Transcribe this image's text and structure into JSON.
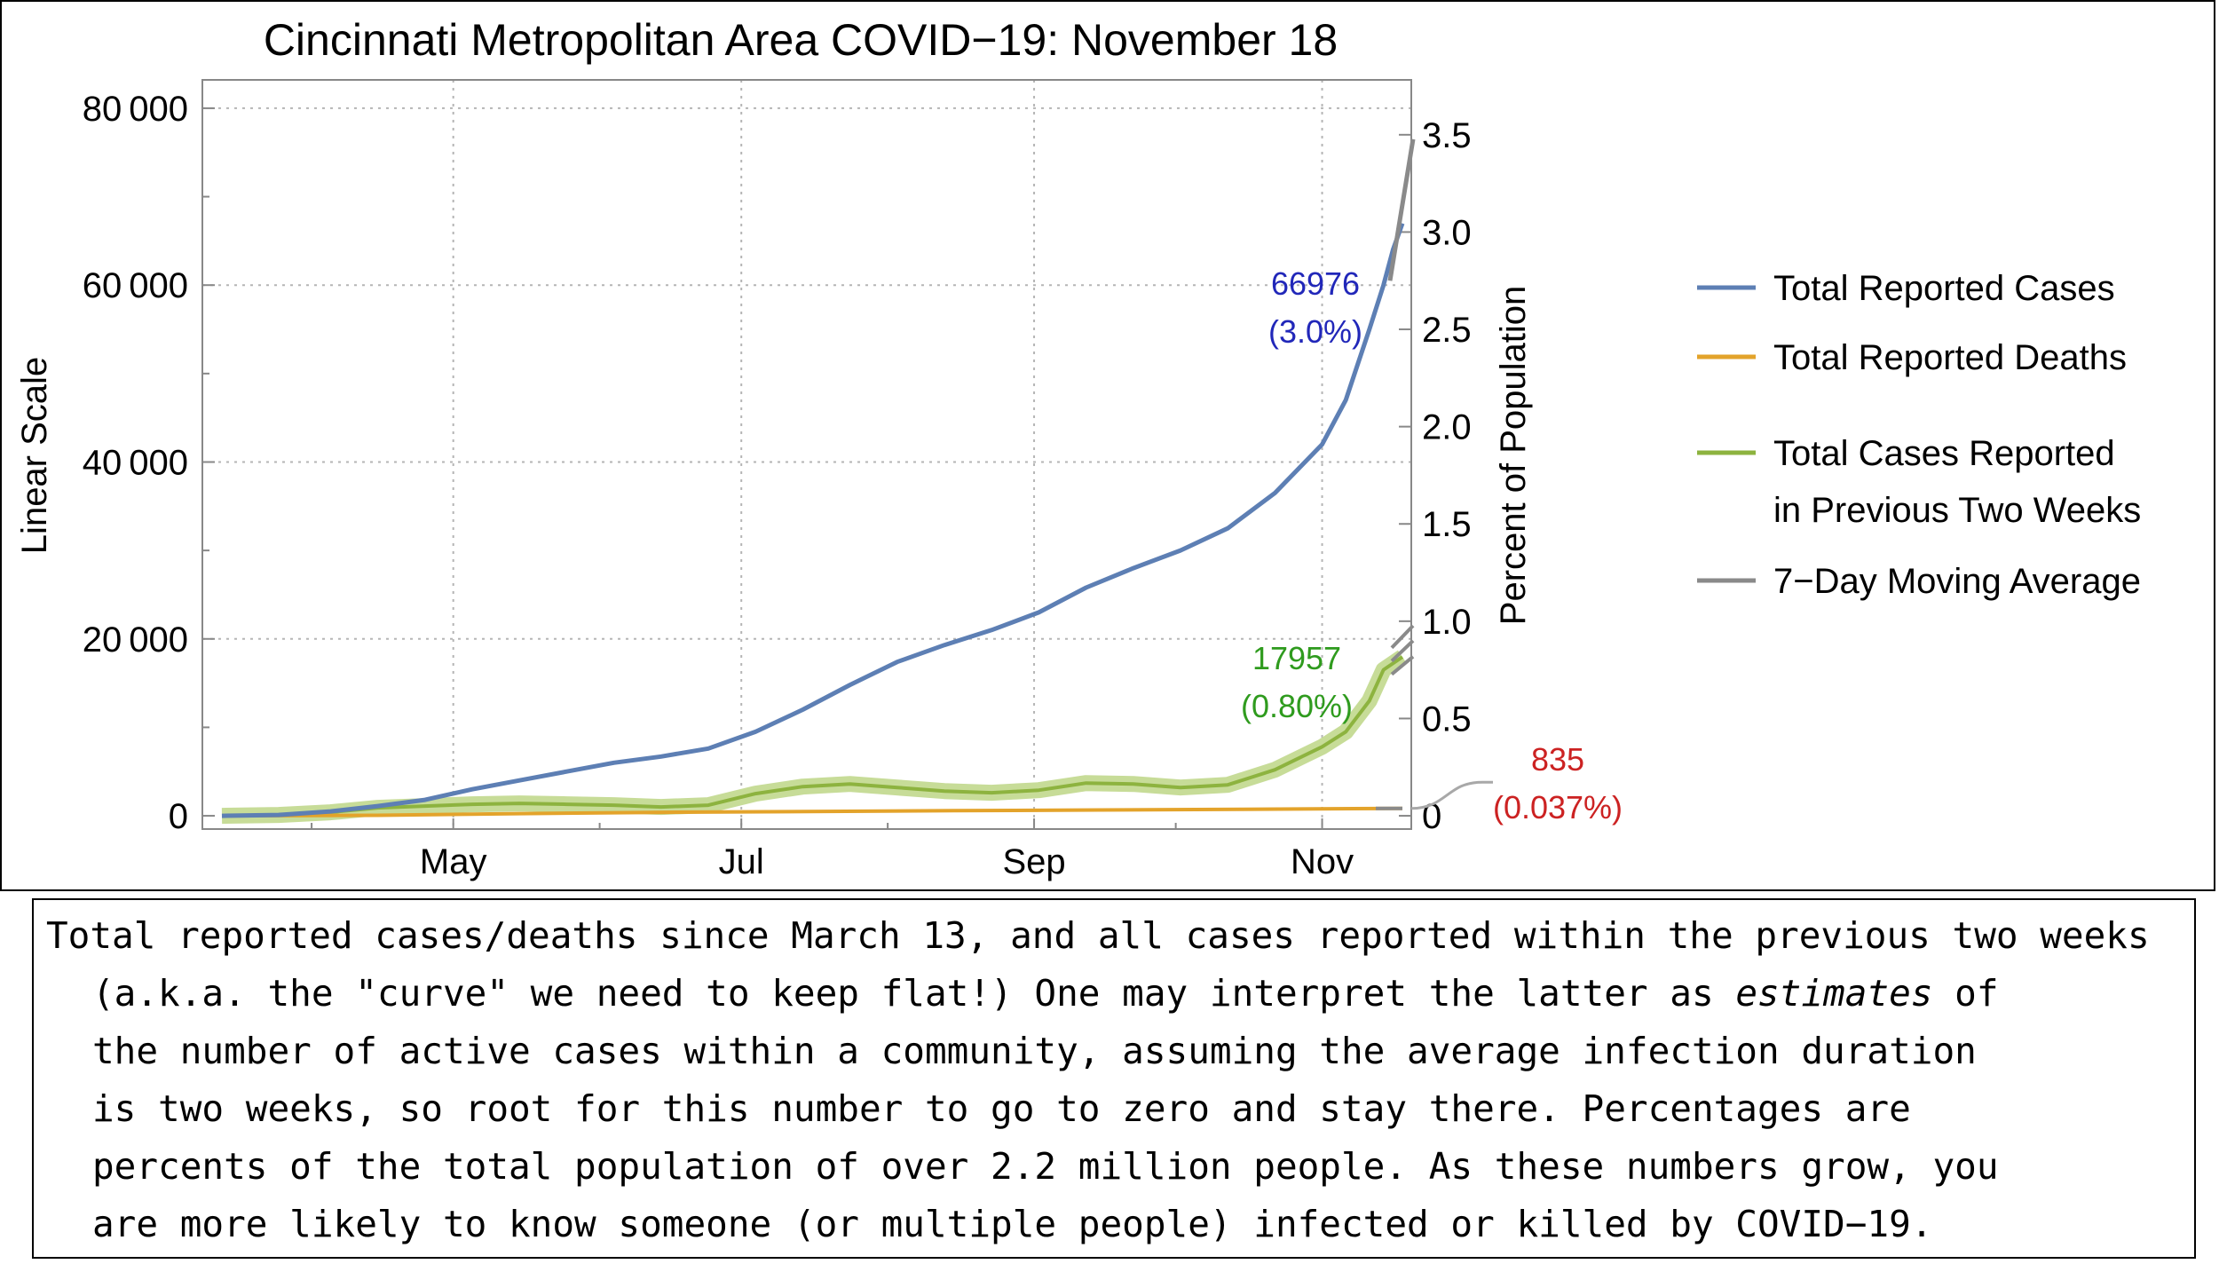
{
  "chart_data": {
    "type": "line",
    "title": "Cincinnati Metropolitan Area COVID−19: November 18",
    "ylabel": "Linear Scale",
    "y2label": "Percent of Population",
    "x_start": "2020-03-13",
    "x_end": "2020-11-18",
    "x_ticks": [
      {
        "date": "2020-05-01",
        "label": "May"
      },
      {
        "date": "2020-07-01",
        "label": "Jul"
      },
      {
        "date": "2020-09-01",
        "label": "Sep"
      },
      {
        "date": "2020-11-01",
        "label": "Nov"
      }
    ],
    "y_ticks": [
      {
        "value": 0,
        "label": "0"
      },
      {
        "value": 20000,
        "label": "20 000"
      },
      {
        "value": 40000,
        "label": "40 000"
      },
      {
        "value": 60000,
        "label": "60 000"
      },
      {
        "value": 80000,
        "label": "80 000"
      }
    ],
    "ylim": [
      -1500,
      82000
    ],
    "y2_ticks": [
      "0",
      "0.5",
      "1.0",
      "1.5",
      "2.0",
      "2.5",
      "3.0",
      "3.5"
    ],
    "grid": true,
    "legend_position": "right",
    "legend": [
      {
        "label": "Total Reported Cases",
        "color": "#5d7fb4"
      },
      {
        "label": "Total Reported Deaths",
        "color": "#e3a32b"
      },
      {
        "label": "Total Cases Reported\nin Previous Two Weeks",
        "color": "#8db33f"
      },
      {
        "label": "7−Day Moving Average",
        "color": "#8a8a8a"
      }
    ],
    "series": [
      {
        "name": "Total Reported Cases",
        "color": "#5d7fb4",
        "points": [
          [
            "2020-03-13",
            0
          ],
          [
            "2020-03-25",
            100
          ],
          [
            "2020-04-05",
            500
          ],
          [
            "2020-04-15",
            1100
          ],
          [
            "2020-04-25",
            1800
          ],
          [
            "2020-05-05",
            3000
          ],
          [
            "2020-05-15",
            4000
          ],
          [
            "2020-05-25",
            5000
          ],
          [
            "2020-06-04",
            6000
          ],
          [
            "2020-06-14",
            6700
          ],
          [
            "2020-06-24",
            7600
          ],
          [
            "2020-07-04",
            9500
          ],
          [
            "2020-07-14",
            12000
          ],
          [
            "2020-07-24",
            14800
          ],
          [
            "2020-08-03",
            17400
          ],
          [
            "2020-08-13",
            19300
          ],
          [
            "2020-08-23",
            21000
          ],
          [
            "2020-09-02",
            23000
          ],
          [
            "2020-09-12",
            25800
          ],
          [
            "2020-09-22",
            28000
          ],
          [
            "2020-10-02",
            30000
          ],
          [
            "2020-10-12",
            32500
          ],
          [
            "2020-10-22",
            36500
          ],
          [
            "2020-11-01",
            42000
          ],
          [
            "2020-11-06",
            47000
          ],
          [
            "2020-11-11",
            55000
          ],
          [
            "2020-11-14",
            60000
          ],
          [
            "2020-11-16",
            64000
          ],
          [
            "2020-11-18",
            66976
          ]
        ]
      },
      {
        "name": "Total Reported Deaths",
        "color": "#e3a32b",
        "points": [
          [
            "2020-03-13",
            0
          ],
          [
            "2020-04-15",
            60
          ],
          [
            "2020-05-15",
            250
          ],
          [
            "2020-06-15",
            400
          ],
          [
            "2020-07-15",
            480
          ],
          [
            "2020-08-15",
            580
          ],
          [
            "2020-09-15",
            660
          ],
          [
            "2020-10-15",
            740
          ],
          [
            "2020-11-18",
            835
          ]
        ]
      },
      {
        "name": "Total Cases Reported in Previous Two Weeks",
        "color": "#8db33f",
        "points": [
          [
            "2020-03-13",
            0
          ],
          [
            "2020-03-25",
            100
          ],
          [
            "2020-04-05",
            400
          ],
          [
            "2020-04-15",
            900
          ],
          [
            "2020-04-25",
            1100
          ],
          [
            "2020-05-05",
            1300
          ],
          [
            "2020-05-15",
            1400
          ],
          [
            "2020-05-25",
            1300
          ],
          [
            "2020-06-04",
            1200
          ],
          [
            "2020-06-14",
            1000
          ],
          [
            "2020-06-24",
            1200
          ],
          [
            "2020-07-04",
            2500
          ],
          [
            "2020-07-14",
            3300
          ],
          [
            "2020-07-24",
            3600
          ],
          [
            "2020-08-03",
            3200
          ],
          [
            "2020-08-13",
            2800
          ],
          [
            "2020-08-23",
            2600
          ],
          [
            "2020-09-02",
            2900
          ],
          [
            "2020-09-12",
            3700
          ],
          [
            "2020-09-22",
            3600
          ],
          [
            "2020-10-02",
            3200
          ],
          [
            "2020-10-12",
            3500
          ],
          [
            "2020-10-22",
            5200
          ],
          [
            "2020-11-01",
            7800
          ],
          [
            "2020-11-06",
            9500
          ],
          [
            "2020-11-11",
            13000
          ],
          [
            "2020-11-14",
            16500
          ],
          [
            "2020-11-18",
            17957
          ]
        ]
      }
    ],
    "annotations": [
      {
        "series": "Total Reported Cases",
        "value": "66976",
        "percent": "(3.0%)",
        "color": "#2127b9"
      },
      {
        "series": "Total Cases Reported in Previous Two Weeks",
        "value": "17957",
        "percent": "(0.80%)",
        "color": "#2f9b1e"
      },
      {
        "series": "Total Reported Deaths",
        "value": "835",
        "percent": "(0.037%)",
        "color": "#cc2222"
      }
    ]
  },
  "caption": {
    "line1": "Total reported cases/deaths since March 13, and all cases reported within the previous two weeks",
    "line2_a": "(a.k.a. the \"curve\" we need to keep flat!) One may interpret the latter as ",
    "line2_em": "estimates",
    "line2_b": " of",
    "line3": "the number of active cases within a community, assuming the average infection duration",
    "line4": "is two weeks, so root for this number to go to zero and stay there. Percentages are",
    "line5": "percents of the total population of over 2.2 million people. As these numbers grow, you",
    "line6": "are more likely to know someone (or multiple people) infected or killed by COVID−19."
  }
}
